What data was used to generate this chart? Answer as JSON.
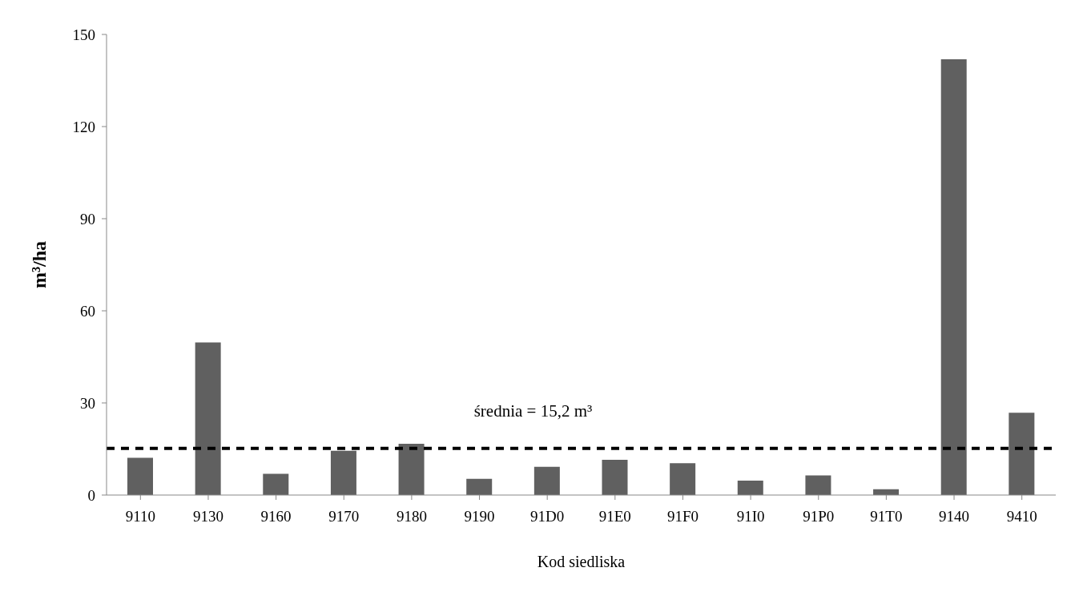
{
  "chart_data": {
    "type": "bar",
    "xlabel": "Kod siedliska",
    "ylabel": "m³/ha",
    "categories": [
      "9110",
      "9130",
      "9160",
      "9170",
      "9180",
      "9190",
      "91D0",
      "91E0",
      "91F0",
      "91I0",
      "91P0",
      "91T0",
      "9140",
      "9410"
    ],
    "values": [
      12.1,
      49.7,
      6.9,
      14.4,
      16.7,
      5.3,
      9.2,
      11.5,
      10.4,
      4.7,
      6.4,
      1.9,
      141.9,
      26.8
    ],
    "color": "#606060",
    "ylim": [
      0,
      150
    ],
    "yticks": [
      0,
      30,
      60,
      90,
      120,
      150
    ],
    "grid": false,
    "ref_lines": [
      {
        "axis": "y",
        "value": 15.2,
        "label": "średnia = 15,2 m³",
        "color": "#000000",
        "line_style": "dashed"
      }
    ]
  }
}
